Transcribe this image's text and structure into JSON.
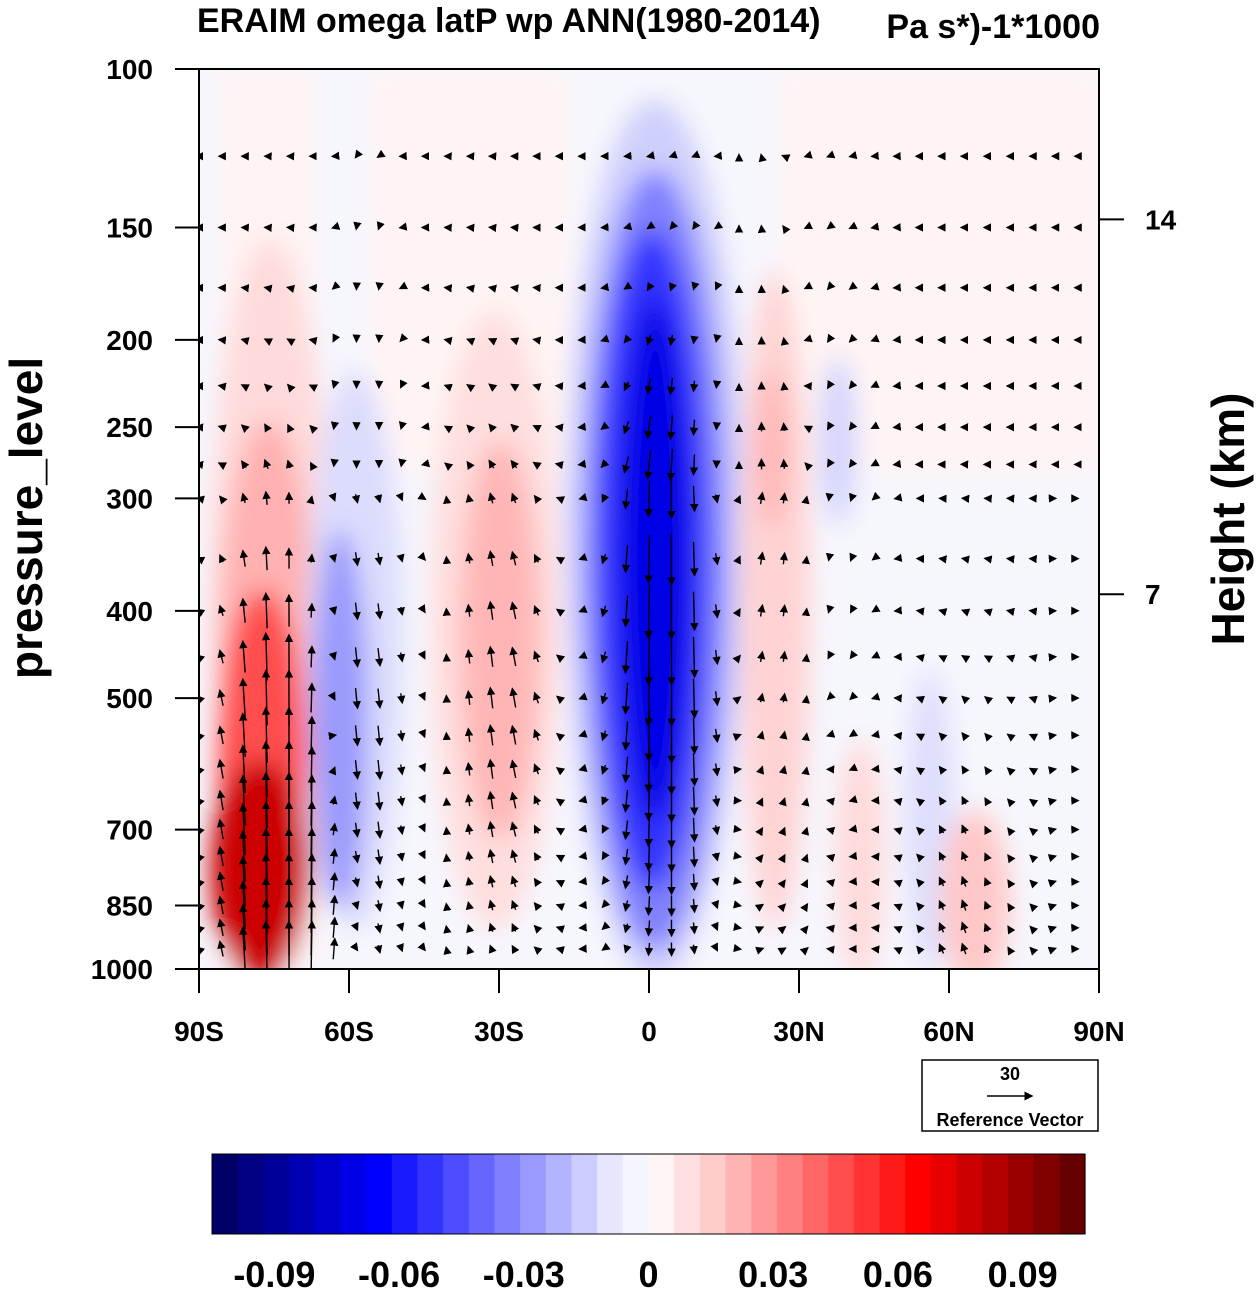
{
  "chart_data": {
    "type": "heatmap",
    "title": "ERAIM omega latP wp ANN(1980-2014)",
    "units": "Pa s*)-1*1000",
    "ylabel": "pressure_level",
    "y2label": "Height (km)",
    "x_ticks": [
      "90S",
      "60S",
      "30S",
      "0",
      "30N",
      "60N",
      "90N"
    ],
    "x_tick_values": [
      -90,
      -60,
      -30,
      0,
      30,
      60,
      90
    ],
    "y_ticks": [
      "100",
      "150",
      "200",
      "250",
      "300",
      "400",
      "500",
      "700",
      "850",
      "1000"
    ],
    "y_tick_values": [
      100,
      150,
      200,
      250,
      300,
      400,
      500,
      700,
      850,
      1000
    ],
    "y2_ticks": [
      "14",
      "7"
    ],
    "y2_tick_values": [
      14,
      7
    ],
    "xlim": [
      -90,
      90
    ],
    "ylim": [
      1000,
      100
    ],
    "y_scale": "log",
    "colorbar": {
      "labels": [
        "-0.09",
        "-0.06",
        "-0.03",
        "0",
        "0.03",
        "0.06",
        "0.09"
      ],
      "label_values": [
        -0.09,
        -0.06,
        -0.03,
        0,
        0.03,
        0.06,
        0.09
      ],
      "range": [
        -0.105,
        0.105
      ],
      "colors": [
        "#000066",
        "#000080",
        "#000099",
        "#0000b3",
        "#0000cc",
        "#0000e6",
        "#0000ff",
        "#1a1aff",
        "#3333ff",
        "#4d4dff",
        "#6666ff",
        "#8080ff",
        "#9999ff",
        "#b3b3ff",
        "#ccccff",
        "#e6e6ff",
        "#f5f5ff",
        "#fff5f5",
        "#ffe0e0",
        "#ffcccc",
        "#ffb3b3",
        "#ff9999",
        "#ff8080",
        "#ff6666",
        "#ff4d4d",
        "#ff3333",
        "#ff1a1a",
        "#ff0000",
        "#e60000",
        "#cc0000",
        "#b30000",
        "#990000",
        "#800000",
        "#660000"
      ]
    },
    "reference_vector": {
      "value": "30",
      "label": "Reference Vector"
    },
    "features": [
      {
        "lat": -76,
        "p": 600,
        "value": 0.06
      },
      {
        "lat": -72,
        "p": 900,
        "value": 0.1
      },
      {
        "lat": -58,
        "p": 550,
        "value": -0.035
      },
      {
        "lat": -30,
        "p": 500,
        "value": 0.03
      },
      {
        "lat": 3,
        "p": 450,
        "value": -0.09
      },
      {
        "lat": 25,
        "p": 350,
        "value": 0.02
      },
      {
        "lat": 36,
        "p": 280,
        "value": -0.01
      },
      {
        "lat": 62,
        "p": 950,
        "value": 0.015
      }
    ]
  }
}
